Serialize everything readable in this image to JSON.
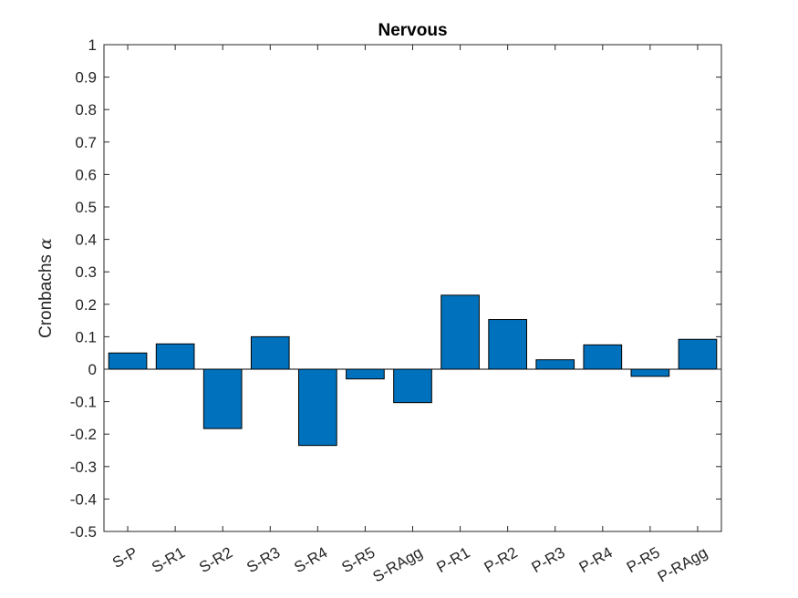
{
  "chart_data": {
    "type": "bar",
    "title": "Nervous",
    "xlabel": "",
    "ylabel": "Cronbachs",
    "ylabel_symbol": "α",
    "categories": [
      "S-P",
      "S-R1",
      "S-R2",
      "S-R3",
      "S-R4",
      "S-R5",
      "S-RAgg",
      "P-R1",
      "P-R2",
      "P-R3",
      "P-R4",
      "P-R5",
      "P-RAgg"
    ],
    "values": [
      0.05,
      0.078,
      -0.183,
      0.1,
      -0.235,
      -0.03,
      -0.103,
      0.228,
      0.153,
      0.029,
      0.075,
      -0.022,
      0.092
    ],
    "ylim": [
      -0.5,
      1
    ],
    "yticks": [
      "-0.5",
      "-0.4",
      "-0.3",
      "-0.2",
      "-0.1",
      "0",
      "0.1",
      "0.2",
      "0.3",
      "0.4",
      "0.5",
      "0.6",
      "0.7",
      "0.8",
      "0.9",
      "1"
    ],
    "bar_color": "#0072BD",
    "grid": false,
    "legend": "none"
  }
}
